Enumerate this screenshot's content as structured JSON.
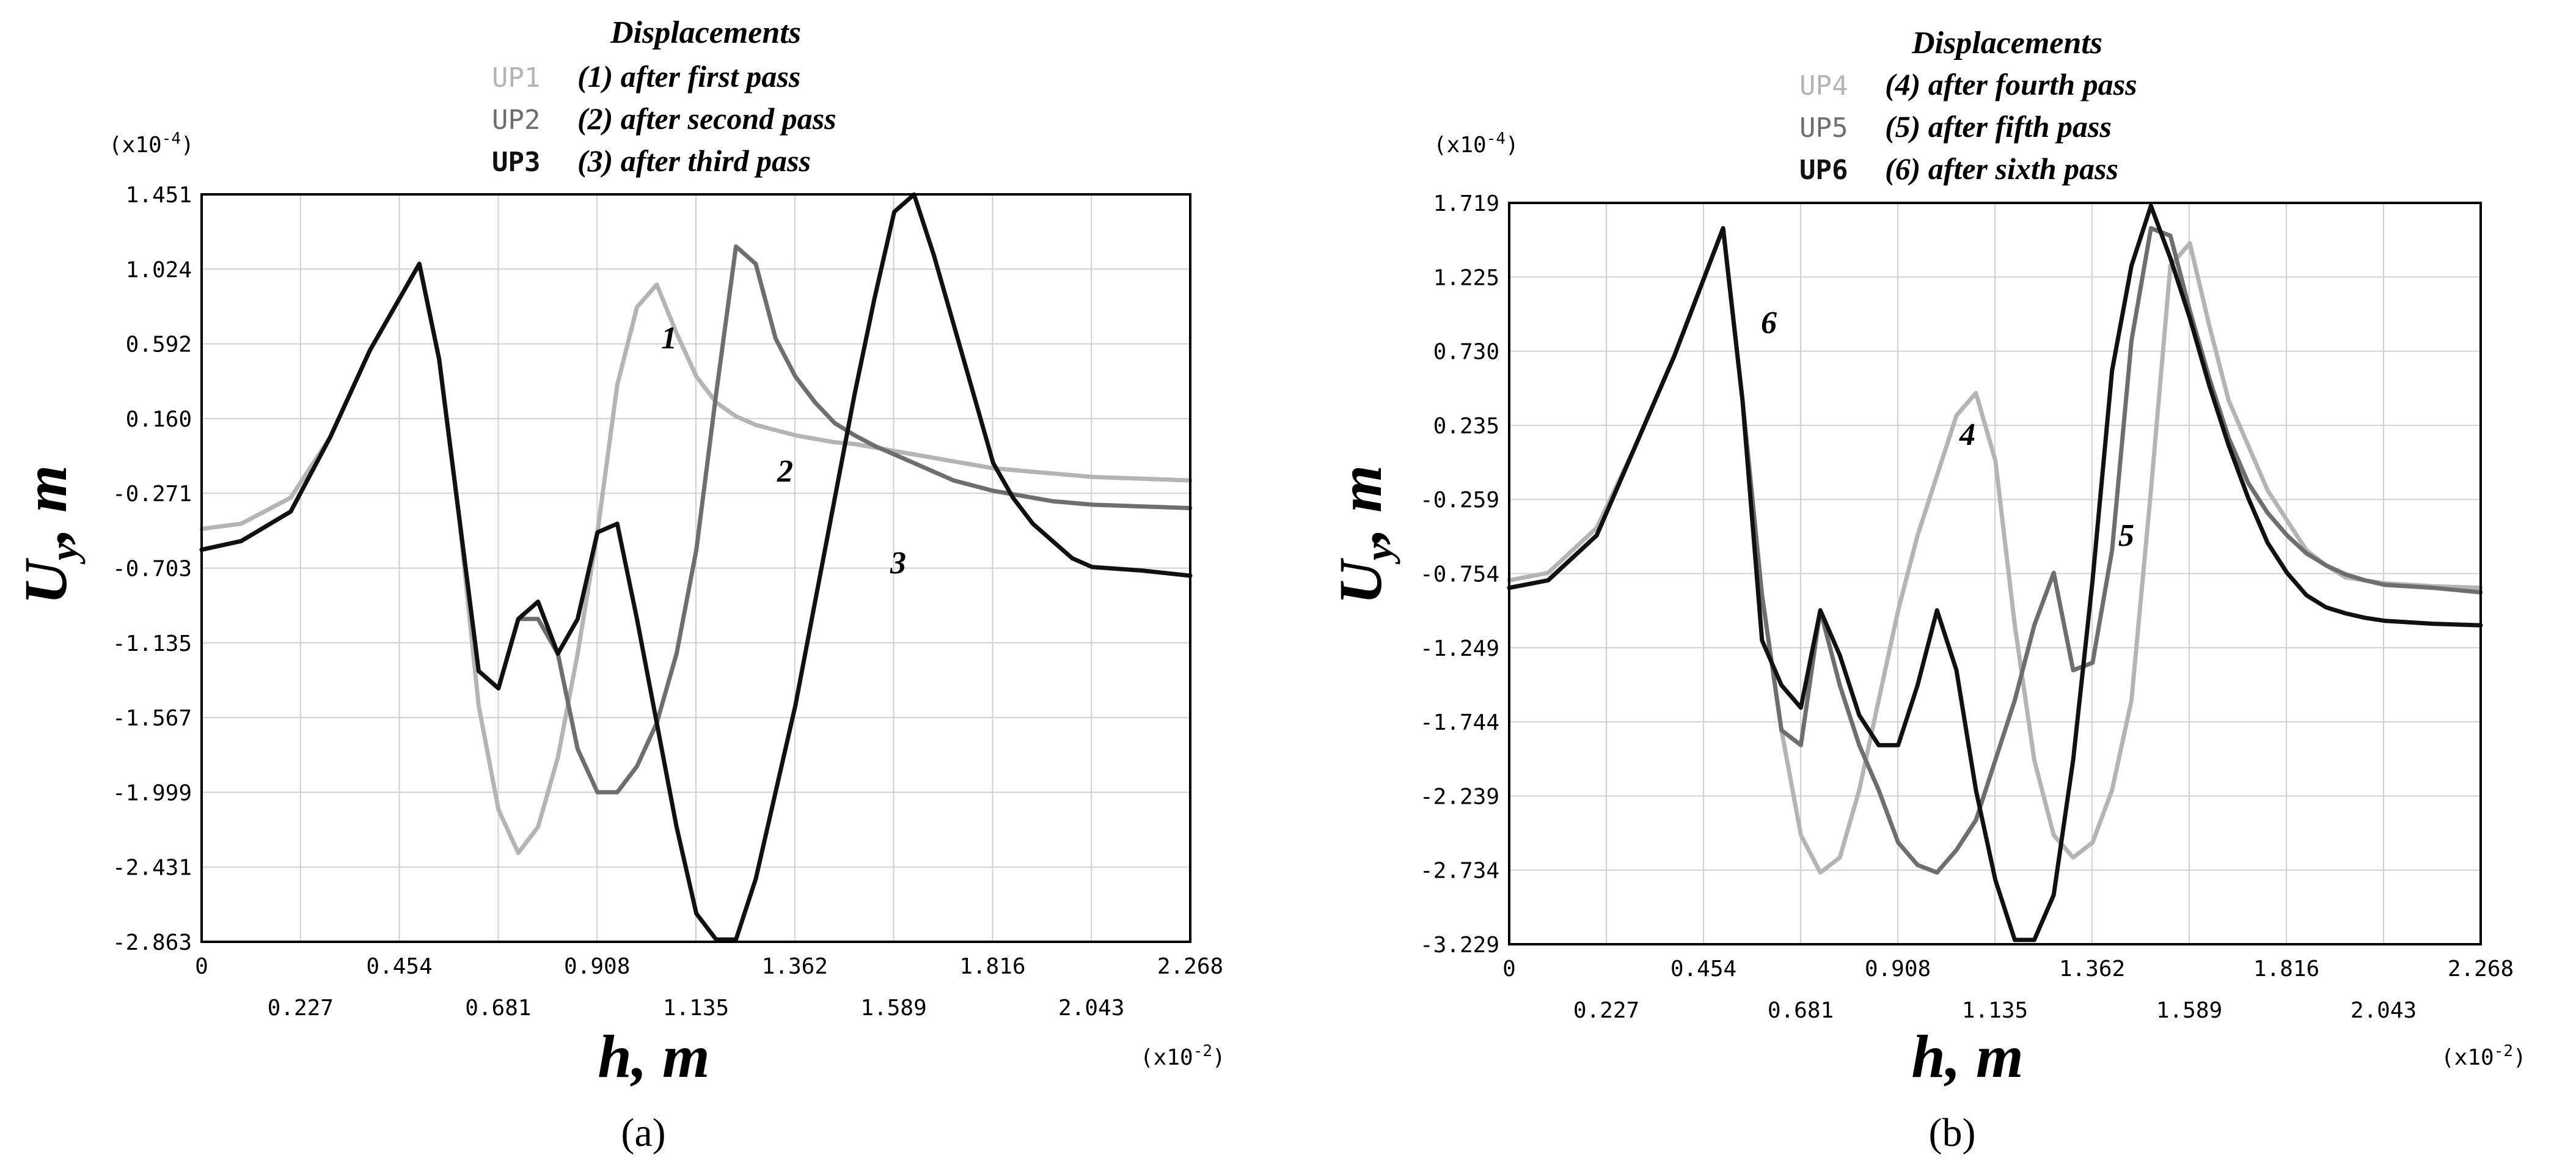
{
  "panels": [
    {
      "panel_label": "(a)",
      "legend": {
        "title": "Displacements",
        "entries": [
          {
            "code": "UP1",
            "text": "(1) after first pass",
            "color": "#b4b4b4"
          },
          {
            "code": "UP2",
            "text": "(2) after second pass",
            "color": "#6e6e6e"
          },
          {
            "code": "UP3",
            "text": "(3) after third pass",
            "color": "#111111"
          }
        ]
      },
      "y_multiplier": "(x10",
      "y_multiplier_exp": "-4",
      "x_multiplier": "(x10",
      "x_multiplier_exp": "-2",
      "ylabel_main": "U",
      "ylabel_sub": "y",
      "ylabel_rest": ", m",
      "xlabel": "h, m",
      "curve_labels": [
        "1",
        "2",
        "3"
      ],
      "chart_data": {
        "type": "line",
        "xlim": [
          0,
          2.268
        ],
        "ylim": [
          -2.863,
          1.451
        ],
        "x_ticks": [
          "0",
          "0.227",
          "0.454",
          "0.681",
          "0.908",
          "1.135",
          "1.362",
          "1.589",
          "1.816",
          "2.043",
          "2.268"
        ],
        "y_ticks": [
          "1.451",
          "1.024",
          "0.592",
          "0.160",
          "-0.271",
          "-0.703",
          "-1.135",
          "-1.567",
          "-1.999",
          "-2.431",
          "-2.863"
        ],
        "grid": true,
        "x": [
          0,
          0.0908,
          0.2043,
          0.2951,
          0.3859,
          0.4994,
          0.5448,
          0.5902,
          0.6356,
          0.681,
          0.7264,
          0.7718,
          0.8172,
          0.8626,
          0.908,
          0.9534,
          0.9988,
          1.0442,
          1.0896,
          1.135,
          1.1804,
          1.2258,
          1.2712,
          1.3166,
          1.362,
          1.4074,
          1.4528,
          1.4982,
          1.5436,
          1.589,
          1.6344,
          1.6798,
          1.7252,
          1.7706,
          1.816,
          1.8614,
          1.9068,
          1.9522,
          1.9976,
          2.043,
          2.1565,
          2.268
        ],
        "series": [
          {
            "name": "UP1",
            "values": [
              -0.48,
              -0.45,
              -0.3,
              0.05,
              0.55,
              1.05,
              0.5,
              -0.4,
              -1.5,
              -2.1,
              -2.35,
              -2.2,
              -1.8,
              -1.2,
              -0.5,
              0.35,
              0.8,
              0.93,
              0.65,
              0.4,
              0.25,
              0.17,
              0.12,
              0.09,
              0.06,
              0.04,
              0.02,
              0.01,
              -0.01,
              -0.03,
              -0.05,
              -0.07,
              -0.09,
              -0.11,
              -0.13,
              -0.14,
              -0.15,
              -0.16,
              -0.17,
              -0.18,
              -0.19,
              -0.2
            ]
          },
          {
            "name": "UP2",
            "values": [
              -0.6,
              -0.55,
              -0.38,
              0.05,
              0.55,
              1.05,
              0.5,
              -0.4,
              -1.3,
              -1.4,
              -1.0,
              -1.0,
              -1.2,
              -1.75,
              -2.0,
              -2.0,
              -1.85,
              -1.6,
              -1.2,
              -0.6,
              0.3,
              1.15,
              1.05,
              0.62,
              0.4,
              0.25,
              0.13,
              0.06,
              0.0,
              -0.05,
              -0.1,
              -0.15,
              -0.2,
              -0.23,
              -0.26,
              -0.28,
              -0.3,
              -0.32,
              -0.33,
              -0.34,
              -0.35,
              -0.36
            ]
          },
          {
            "name": "UP3",
            "values": [
              -0.6,
              -0.55,
              -0.38,
              0.05,
              0.55,
              1.05,
              0.5,
              -0.4,
              -1.3,
              -1.4,
              -1.0,
              -0.9,
              -1.2,
              -1.0,
              -0.5,
              -0.45,
              -1.0,
              -1.6,
              -2.2,
              -2.7,
              -2.85,
              -2.85,
              -2.5,
              -2.0,
              -1.5,
              -0.9,
              -0.3,
              0.3,
              0.85,
              1.35,
              1.45,
              1.1,
              0.7,
              0.3,
              -0.1,
              -0.3,
              -0.45,
              -0.55,
              -0.65,
              -0.7,
              -0.72,
              -0.75
            ]
          }
        ]
      }
    },
    {
      "panel_label": "(b)",
      "legend": {
        "title": "Displacements",
        "entries": [
          {
            "code": "UP4",
            "text": "(4) after fourth pass",
            "color": "#b4b4b4"
          },
          {
            "code": "UP5",
            "text": "(5) after fifth pass",
            "color": "#6e6e6e"
          },
          {
            "code": "UP6",
            "text": "(6) after sixth pass",
            "color": "#111111"
          }
        ]
      },
      "y_multiplier": "(x10",
      "y_multiplier_exp": "-4",
      "x_multiplier": "(x10",
      "x_multiplier_exp": "-2",
      "ylabel_main": "U",
      "ylabel_sub": "y",
      "ylabel_rest": ", m",
      "xlabel": "h, m",
      "curve_labels": [
        "4",
        "5",
        "6"
      ],
      "chart_data": {
        "type": "line",
        "xlim": [
          0,
          2.268
        ],
        "ylim": [
          -3.229,
          1.719
        ],
        "x_ticks": [
          "0",
          "0.227",
          "0.454",
          "0.681",
          "0.908",
          "1.135",
          "1.362",
          "1.589",
          "1.816",
          "2.043",
          "2.268"
        ],
        "y_ticks": [
          "1.719",
          "1.225",
          "0.730",
          "0.235",
          "-0.259",
          "-0.754",
          "-1.249",
          "-1.744",
          "-2.239",
          "-2.734",
          "-3.229"
        ],
        "grid": true,
        "x": [
          0,
          0.0908,
          0.2043,
          0.2951,
          0.3859,
          0.4994,
          0.5448,
          0.5902,
          0.6356,
          0.681,
          0.7264,
          0.7718,
          0.8172,
          0.8626,
          0.908,
          0.9534,
          0.9988,
          1.0442,
          1.0896,
          1.135,
          1.1804,
          1.2258,
          1.2712,
          1.3166,
          1.362,
          1.4074,
          1.4528,
          1.4982,
          1.5436,
          1.589,
          1.6344,
          1.6798,
          1.7252,
          1.7706,
          1.816,
          1.8614,
          1.9068,
          1.9522,
          1.9976,
          2.043,
          2.1565,
          2.268
        ],
        "series": [
          {
            "name": "UP4",
            "values": [
              -0.8,
              -0.75,
              -0.45,
              0.1,
              0.7,
              1.55,
              0.4,
              -0.9,
              -1.8,
              -2.5,
              -2.75,
              -2.65,
              -2.2,
              -1.6,
              -1.0,
              -0.5,
              -0.1,
              0.3,
              0.45,
              0.0,
              -1.1,
              -2.0,
              -2.5,
              -2.65,
              -2.55,
              -2.2,
              -1.6,
              -0.2,
              1.3,
              1.45,
              0.9,
              0.4,
              0.1,
              -0.2,
              -0.4,
              -0.6,
              -0.7,
              -0.78,
              -0.8,
              -0.82,
              -0.84,
              -0.85
            ]
          },
          {
            "name": "UP5",
            "values": [
              -0.85,
              -0.8,
              -0.5,
              0.1,
              0.7,
              1.55,
              0.4,
              -0.9,
              -1.8,
              -1.9,
              -1.0,
              -1.5,
              -1.9,
              -2.2,
              -2.55,
              -2.7,
              -2.75,
              -2.6,
              -2.4,
              -2.0,
              -1.6,
              -1.1,
              -0.75,
              -1.4,
              -1.35,
              -0.6,
              0.8,
              1.55,
              1.5,
              1.0,
              0.55,
              0.15,
              -0.15,
              -0.35,
              -0.5,
              -0.62,
              -0.7,
              -0.76,
              -0.8,
              -0.83,
              -0.85,
              -0.88
            ]
          },
          {
            "name": "UP6",
            "values": [
              -0.85,
              -0.8,
              -0.5,
              0.1,
              0.7,
              1.55,
              0.4,
              -1.2,
              -1.5,
              -1.65,
              -1.0,
              -1.3,
              -1.7,
              -1.9,
              -1.9,
              -1.5,
              -1.0,
              -1.4,
              -2.2,
              -2.8,
              -3.2,
              -3.2,
              -2.9,
              -2.0,
              -0.8,
              0.6,
              1.3,
              1.7,
              1.35,
              0.95,
              0.5,
              0.1,
              -0.25,
              -0.55,
              -0.75,
              -0.9,
              -0.98,
              -1.02,
              -1.05,
              -1.07,
              -1.09,
              -1.1
            ]
          }
        ]
      }
    }
  ]
}
